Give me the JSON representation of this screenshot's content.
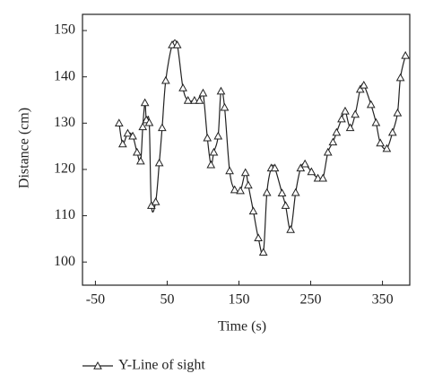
{
  "chart_data": {
    "type": "line",
    "x_label": "Time (s)",
    "y_label": "Distance (cm)",
    "xlim": [
      -68,
      388
    ],
    "ylim": [
      95,
      153.5
    ],
    "xticks": [
      -50,
      50,
      150,
      250,
      350
    ],
    "yticks": [
      100,
      110,
      120,
      130,
      140,
      150
    ],
    "marker": "triangle",
    "smooth": true,
    "legend": "bottom-left",
    "series": [
      {
        "name": "Y-Line of sight",
        "color": "#222222",
        "x": [
          -17,
          -12,
          -5,
          2,
          8,
          13,
          16,
          19,
          21,
          25,
          28,
          34,
          39,
          43,
          48,
          57,
          64,
          72,
          79,
          88,
          95,
          100,
          106,
          111,
          115,
          121,
          125,
          130,
          137,
          144,
          152,
          159,
          163,
          170,
          177,
          184,
          189,
          195,
          200,
          210,
          215,
          222,
          229,
          236,
          242,
          251,
          260,
          267,
          274,
          281,
          286,
          293,
          298,
          305,
          312,
          319,
          324,
          334,
          341,
          347,
          356,
          364,
          371,
          375,
          382
        ],
        "values": [
          130,
          125.5,
          127.8,
          127.2,
          123.7,
          121.8,
          129.2,
          134.4,
          130.7,
          130.1,
          112.2,
          113,
          121.4,
          129,
          139.2,
          146.9,
          146.9,
          137.6,
          134.9,
          134.9,
          134.9,
          136.5,
          126.8,
          121,
          123.7,
          127.2,
          136.9,
          133.4,
          119.7,
          115.6,
          115.4,
          119.3,
          116.6,
          111,
          105.2,
          102.1,
          115,
          120.3,
          120.3,
          114.9,
          112.2,
          107,
          115,
          120.3,
          121.2,
          119.5,
          118.1,
          118.1,
          123.7,
          125.9,
          128,
          130.9,
          132.6,
          129,
          131.9,
          137.3,
          138.2,
          134,
          130.1,
          125.7,
          124.5,
          128,
          132.2,
          139.8,
          144.6
        ]
      }
    ]
  }
}
